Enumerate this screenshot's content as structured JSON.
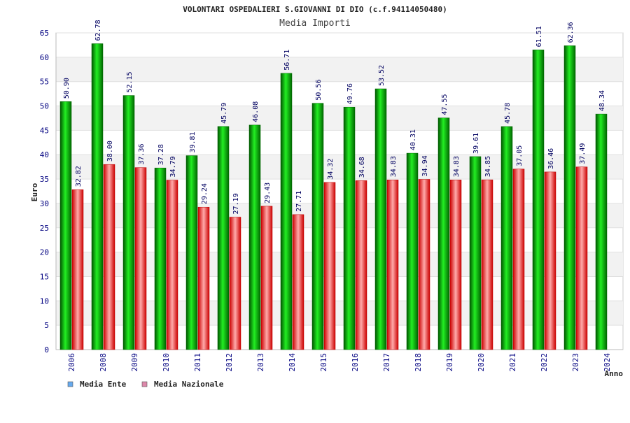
{
  "chart_data": {
    "type": "bar",
    "title": "VOLONTARI OSPEDALIERI S.GIOVANNI DI DIO (c.f.94114050480)",
    "subtitle": "Media Importi",
    "xlabel": "Anno",
    "ylabel": "Euro",
    "ylim": [
      0,
      65
    ],
    "yticks": [
      "0",
      "5",
      "10",
      "15",
      "20",
      "25",
      "30",
      "35",
      "40",
      "45",
      "50",
      "55",
      "60",
      "65"
    ],
    "grid": true,
    "legend_position": "bottom-left",
    "categories": [
      "2006",
      "2008",
      "2009",
      "2010",
      "2011",
      "2012",
      "2013",
      "2014",
      "2015",
      "2016",
      "2017",
      "2018",
      "2019",
      "2020",
      "2021",
      "2022",
      "2023",
      "2024"
    ],
    "series": [
      {
        "name": "Media Ente",
        "color": "#00aa00",
        "legend_color": "#66aaee",
        "values": [
          50.9,
          62.78,
          52.15,
          37.28,
          39.81,
          45.79,
          46.08,
          56.71,
          50.56,
          49.76,
          53.52,
          40.31,
          47.55,
          39.61,
          45.78,
          61.51,
          62.36,
          48.34
        ],
        "labels": [
          "50.90",
          "62.78",
          "52.15",
          "37.28",
          "39.81",
          "45.79",
          "46.08",
          "56.71",
          "50.56",
          "49.76",
          "53.52",
          "40.31",
          "47.55",
          "39.61",
          "45.78",
          "61.51",
          "62.36",
          "48.34"
        ]
      },
      {
        "name": "Media Nazionale",
        "color": "#ee2222",
        "legend_color": "#dd88aa",
        "values": [
          32.82,
          38.0,
          37.36,
          34.79,
          29.24,
          27.19,
          29.43,
          27.71,
          34.32,
          34.68,
          34.83,
          34.94,
          34.83,
          34.85,
          37.05,
          36.46,
          37.49,
          null
        ],
        "labels": [
          "32.82",
          "38.00",
          "37.36",
          "34.79",
          "29.24",
          "27.19",
          "29.43",
          "27.71",
          "34.32",
          "34.68",
          "34.83",
          "34.94",
          "34.83",
          "34.85",
          "37.05",
          "36.46",
          "37.49",
          ""
        ]
      }
    ]
  }
}
